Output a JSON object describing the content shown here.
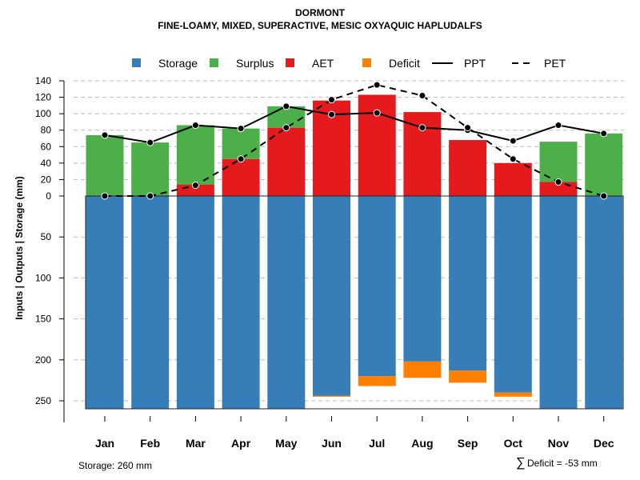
{
  "chart_data": {
    "type": "bar",
    "title": "DORMONT",
    "subtitle": "FINE-LOAMY, MIXED, SUPERACTIVE, MESIC OXYAQUIC HAPLUDALFS",
    "ylabel": "Inputs | Outputs | Storage    (mm)",
    "categories": [
      "Jan",
      "Feb",
      "Mar",
      "Apr",
      "May",
      "Jun",
      "Jul",
      "Aug",
      "Sep",
      "Oct",
      "Nov",
      "Dec"
    ],
    "yticks_upper": [
      0,
      20,
      40,
      60,
      80,
      100,
      120,
      140
    ],
    "yticks_lower": [
      50,
      100,
      150,
      200,
      250
    ],
    "ylim_upper": [
      0,
      140
    ],
    "ylim_lower": [
      0,
      260
    ],
    "legend": [
      "Storage",
      "Surplus",
      "AET",
      "Deficit",
      "PPT",
      "PET"
    ],
    "legend_position": "top",
    "series": [
      {
        "name": "AET",
        "color": "#E41A1C",
        "values": [
          0,
          0,
          14,
          45,
          83,
          116,
          123,
          102,
          68,
          40,
          17,
          0
        ]
      },
      {
        "name": "Surplus",
        "color": "#4DAF4A",
        "values": [
          74,
          65,
          72,
          37,
          26,
          0,
          0,
          0,
          0,
          0,
          49,
          76
        ]
      },
      {
        "name": "Storage",
        "color": "#377EB8",
        "values": [
          260,
          260,
          260,
          260,
          260,
          244,
          220,
          202,
          213,
          240,
          260,
          260
        ]
      },
      {
        "name": "Deficit",
        "color": "#FF7F00",
        "values": [
          0,
          0,
          0,
          0,
          0,
          -1,
          -12,
          -20,
          -15,
          -5,
          0,
          0
        ]
      },
      {
        "name": "PPT",
        "color": "#000000",
        "values": [
          74,
          65,
          86,
          82,
          109,
          99,
          101,
          83,
          80,
          67,
          86,
          76
        ]
      },
      {
        "name": "PET",
        "color": "#000000",
        "values": [
          0,
          0,
          13,
          45,
          83,
          117,
          135,
          122,
          83,
          45,
          17,
          0
        ]
      }
    ]
  },
  "notes": {
    "storage": "Storage: 260 mm",
    "deficit_symbol": "∑",
    "deficit": "Deficit = -53 mm"
  }
}
